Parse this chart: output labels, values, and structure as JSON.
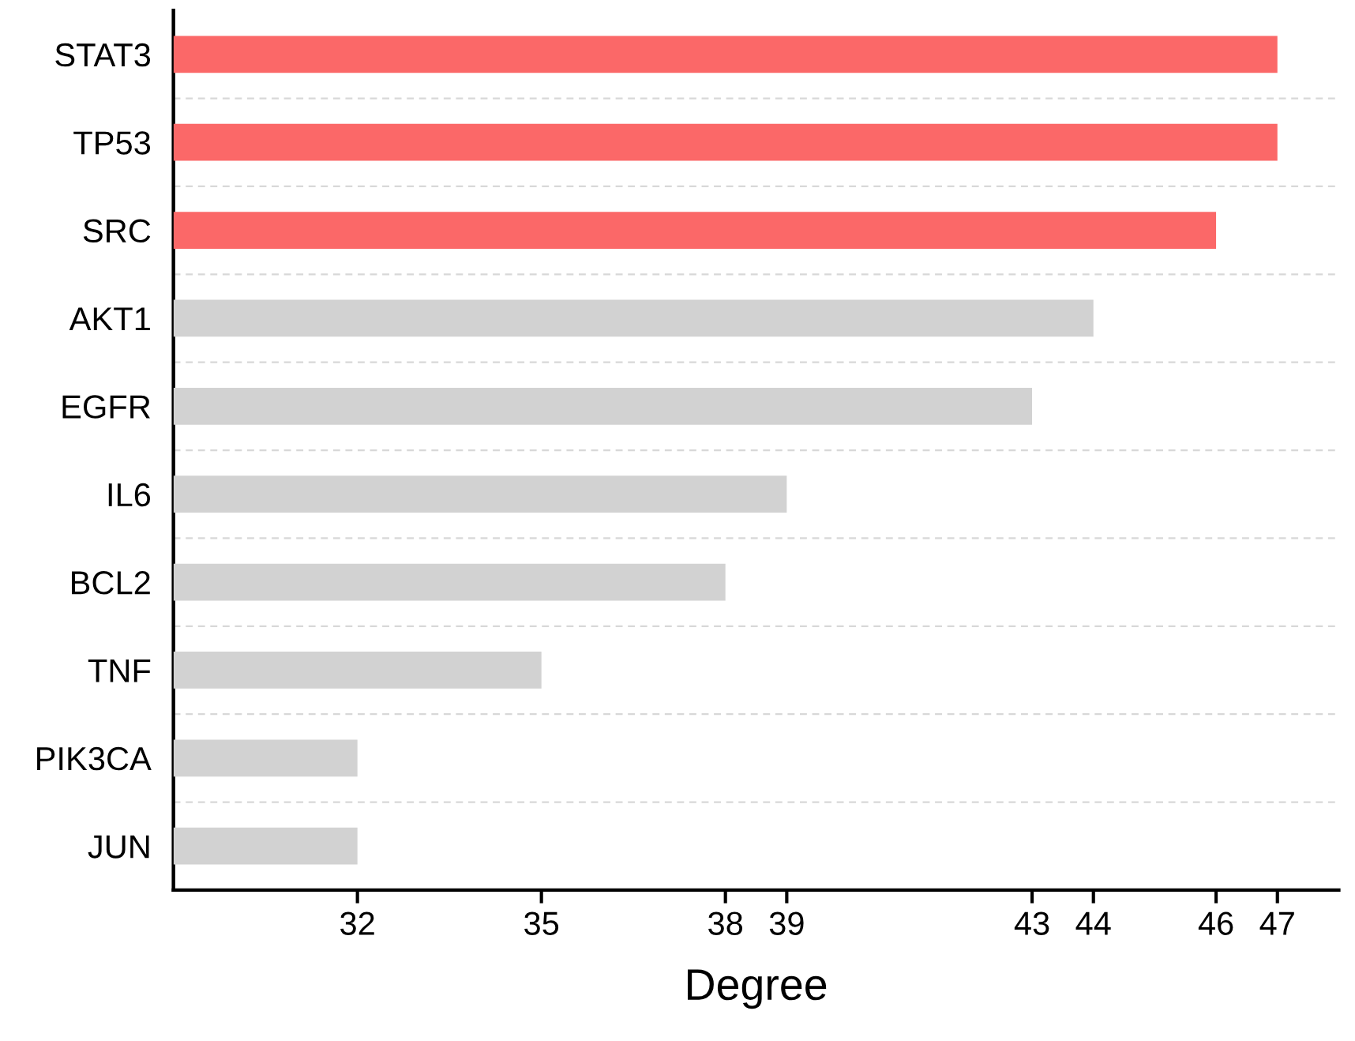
{
  "chart_data": {
    "type": "bar",
    "orientation": "horizontal",
    "xlabel": "Degree",
    "categories": [
      "STAT3",
      "TP53",
      "SRC",
      "AKT1",
      "EGFR",
      "IL6",
      "BCL2",
      "TNF",
      "PIK3CA",
      "JUN"
    ],
    "values": [
      47,
      47,
      46,
      44,
      43,
      39,
      38,
      35,
      32,
      32
    ],
    "colors": [
      "#fb6868",
      "#fb6868",
      "#fb6868",
      "#d2d2d2",
      "#d2d2d2",
      "#d2d2d2",
      "#d2d2d2",
      "#d2d2d2",
      "#d2d2d2",
      "#d2d2d2"
    ],
    "xlim": [
      29,
      48
    ],
    "xticks": [
      32,
      35,
      38,
      39,
      43,
      44,
      46,
      47
    ],
    "grid": "y"
  }
}
